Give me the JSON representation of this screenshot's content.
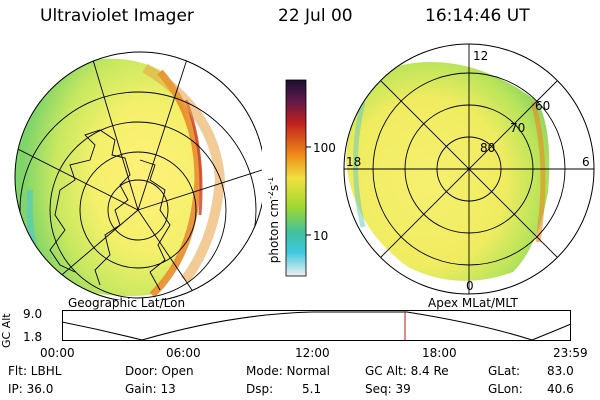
{
  "header": {
    "title": "Ultraviolet Imager",
    "date": "22 Jul 00",
    "time": "16:14:46 UT"
  },
  "left_panel": {
    "caption": "Geographic Lat/Lon"
  },
  "right_panel": {
    "caption": "Apex MLat/MLT",
    "mlt_labels": {
      "top": "12",
      "left": "18",
      "right": "6",
      "bottom": "0"
    },
    "lat_labels": [
      "60",
      "70",
      "80"
    ]
  },
  "colorbar": {
    "unit_label": "photon cm",
    "unit_exp1": "-2",
    "unit_s": "s",
    "unit_exp2": "-1",
    "tick_labels": [
      "100",
      "10"
    ]
  },
  "timeline": {
    "y_label": "GC Alt",
    "y_ticks": [
      "9.0",
      "1.8"
    ],
    "x_ticks": [
      "00:00",
      "06:00",
      "12:00",
      "18:00",
      "23:59"
    ]
  },
  "info": {
    "flt": "Flt: LBHL",
    "ip": "IP: 36.0",
    "door": "Door: Open",
    "gain": "Gain: 13",
    "mode": "Mode: Normal",
    "dsp_label": "Dsp:",
    "dsp_value": "5.1",
    "gc_alt": "GC Alt: 8.4 Re",
    "seq": "Seq: 39",
    "glat_label": "GLat:",
    "glat_value": "83.0",
    "glon_label": "GLon:",
    "glon_value": "40.6"
  }
}
